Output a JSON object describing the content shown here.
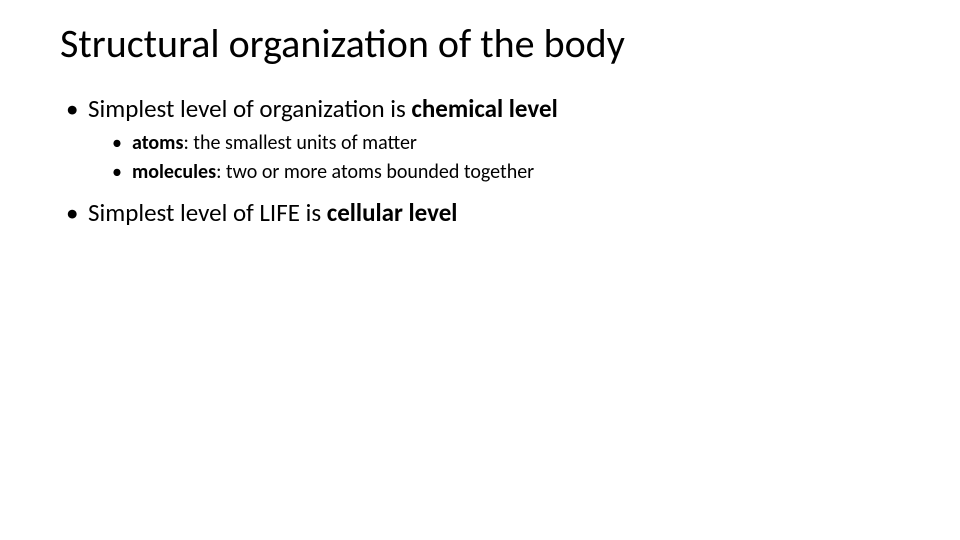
{
  "slide": {
    "background_color": "#ffffff",
    "text_color": "#000000",
    "font_family": "Calibri",
    "title": {
      "text": "Structural organization of the body",
      "fontsize_pt": 40,
      "fontweight": 400
    },
    "bullets": {
      "level1_fontsize_pt": 25,
      "level2_fontsize_pt": 20,
      "marker": "•",
      "items": [
        {
          "runs": [
            {
              "text": "Simplest level of organization is ",
              "bold": false
            },
            {
              "text": "chemical level",
              "bold": true
            }
          ],
          "children": [
            {
              "runs": [
                {
                  "text": "atoms",
                  "bold": true
                },
                {
                  "text": ": the smallest units of matter",
                  "bold": false
                }
              ]
            },
            {
              "runs": [
                {
                  "text": "molecules",
                  "bold": true
                },
                {
                  "text": ": two or more atoms bounded together",
                  "bold": false
                }
              ]
            }
          ]
        },
        {
          "runs": [
            {
              "text": "Simplest level of LIFE is ",
              "bold": false
            },
            {
              "text": "cellular level",
              "bold": true
            }
          ],
          "children": []
        }
      ]
    }
  }
}
